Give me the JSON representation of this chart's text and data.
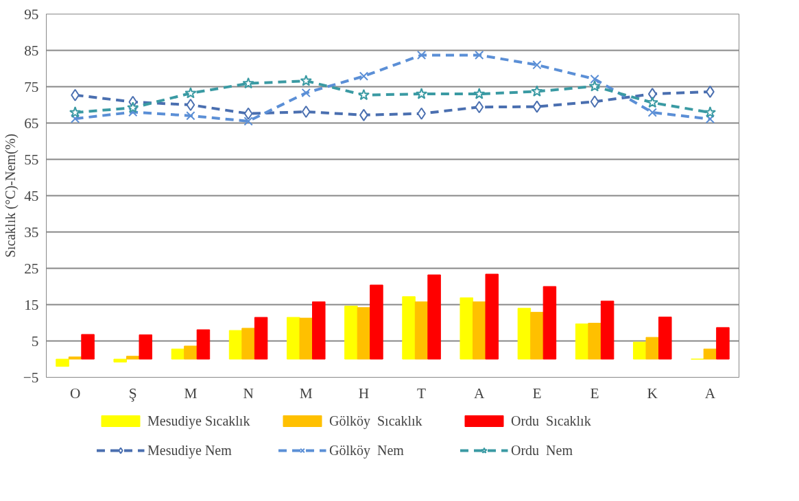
{
  "chart_data": {
    "type": "bar",
    "ylabel": "Sıcaklık (°C)-Nem(%)",
    "categories": [
      "O",
      "Ş",
      "M",
      "N",
      "M",
      "H",
      "T",
      "A",
      "E",
      "E",
      "K",
      "A"
    ],
    "ylim": [
      -5,
      95
    ],
    "yticks": [
      -5,
      5,
      15,
      25,
      35,
      45,
      55,
      65,
      75,
      85,
      95
    ],
    "grid": "y",
    "legend": "bottom",
    "series": [
      {
        "name": "Mesudiye Sıcaklık",
        "color": "#ffff00",
        "values": [
          -2.0,
          -0.8,
          2.8,
          7.9,
          11.5,
          14.6,
          17.2,
          16.9,
          14.0,
          9.7,
          4.7,
          0
        ]
      },
      {
        "name": "Gölköy  Sıcaklık",
        "color": "#ffc000",
        "values": [
          0.6,
          0.8,
          3.6,
          8.5,
          11.3,
          14.2,
          15.8,
          15.8,
          12.9,
          9.9,
          6.0,
          2.8
        ]
      },
      {
        "name": "Ordu  Sıcaklık",
        "color": "#ff0000",
        "values": [
          6.8,
          6.7,
          8.1,
          11.5,
          15.8,
          20.4,
          23.2,
          23.4,
          20.0,
          16.0,
          11.6,
          8.7
        ]
      },
      {
        "name": "Mesudiye Nem",
        "type": "line",
        "marker": "diamond",
        "line_style": "dashed",
        "color": "#4a6fb0",
        "values": [
          72.7,
          70.8,
          70.0,
          67.6,
          68.1,
          67.2,
          67.6,
          69.4,
          69.5,
          70.9,
          73.0,
          73.6
        ]
      },
      {
        "name": "Gölköy  Nem",
        "type": "line",
        "marker": "cross",
        "line_style": "dashed",
        "color": "#5b8fd6",
        "values": [
          66.2,
          68.0,
          67.0,
          65.5,
          73.3,
          77.9,
          83.7,
          83.7,
          81.0,
          77.1,
          67.9,
          66.1
        ]
      },
      {
        "name": "Ordu  Nem",
        "type": "line",
        "marker": "star",
        "line_style": "dashed",
        "color": "#3a9aa3",
        "values": [
          67.9,
          69.2,
          73.2,
          75.9,
          76.6,
          72.7,
          73.0,
          73.0,
          73.7,
          75.1,
          70.6,
          67.9
        ]
      }
    ]
  }
}
